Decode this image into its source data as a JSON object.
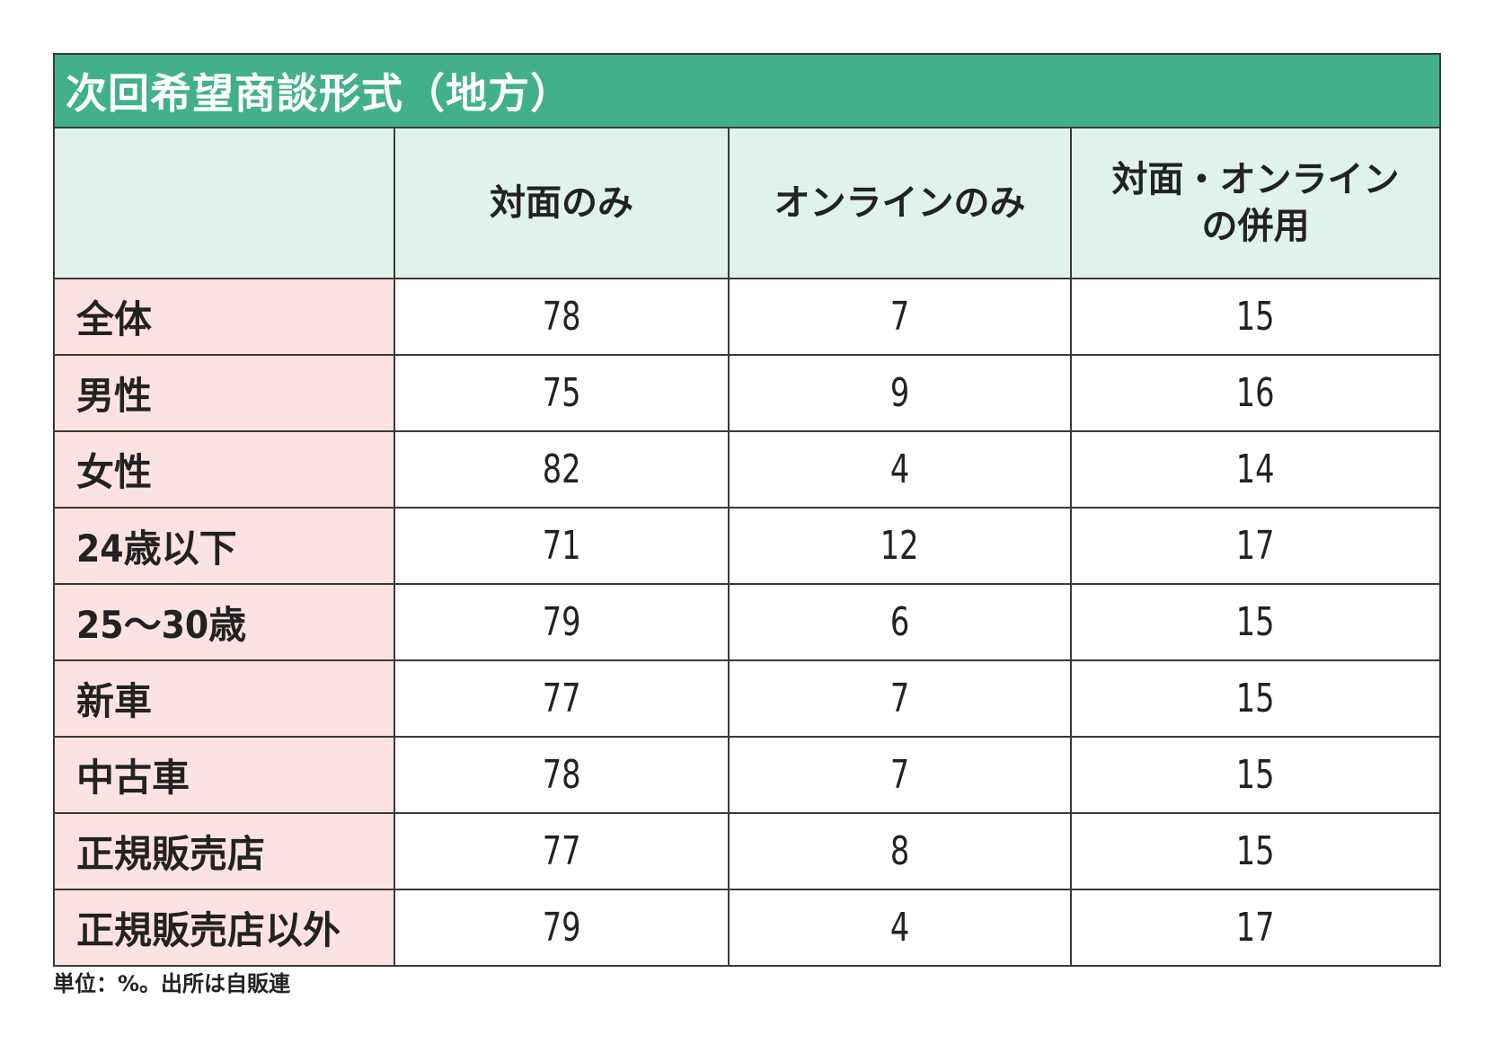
{
  "chart_data": {
    "type": "table",
    "title": "次回希望商談形式（地方）",
    "columns": [
      "",
      "対面のみ",
      "オンラインのみ",
      "対面・オンラインの併用"
    ],
    "header_lines": [
      [
        ""
      ],
      [
        "対面のみ"
      ],
      [
        "オンラインのみ"
      ],
      [
        "対面・オンライン",
        "の併用"
      ]
    ],
    "rows": [
      {
        "label": "全体",
        "values": [
          "78",
          "7",
          "15"
        ]
      },
      {
        "label": "男性",
        "values": [
          "75",
          "9",
          "16"
        ]
      },
      {
        "label": "女性",
        "values": [
          "82",
          "4",
          "14"
        ]
      },
      {
        "label": "24歳以下",
        "values": [
          "71",
          "12",
          "17"
        ]
      },
      {
        "label": "25〜30歳",
        "values": [
          "79",
          "6",
          "15"
        ]
      },
      {
        "label": "新車",
        "values": [
          "77",
          "7",
          "15"
        ]
      },
      {
        "label": "中古車",
        "values": [
          "78",
          "7",
          "15"
        ]
      },
      {
        "label": "正規販売店",
        "values": [
          "77",
          "8",
          "15"
        ]
      },
      {
        "label": "正規販売店以外",
        "values": [
          "79",
          "4",
          "17"
        ]
      }
    ],
    "note": "単位：%。出所は自販連"
  },
  "colors": {
    "title_bg": "#42b18a",
    "header_bg": "#e0f2ec",
    "row_label_bg": "#fce2e2",
    "border": "#3a3a3a"
  }
}
